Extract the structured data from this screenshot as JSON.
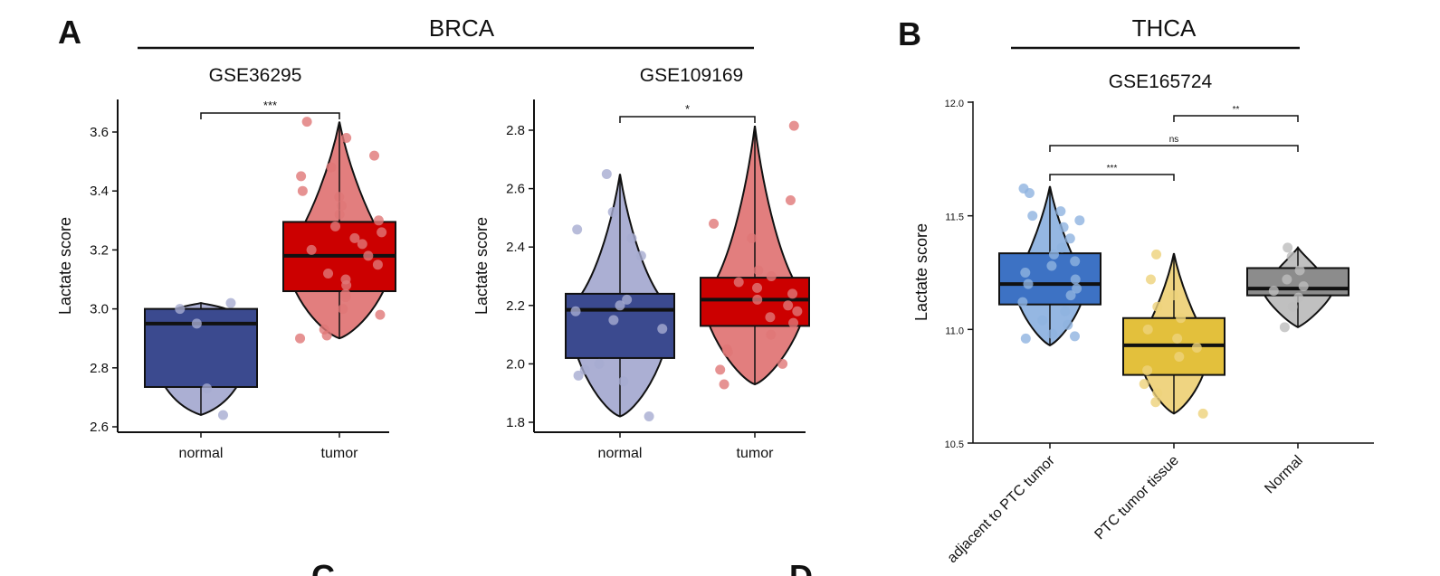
{
  "panels": {
    "a": {
      "letter": "A",
      "title": "BRCA"
    },
    "b": {
      "letter": "B",
      "title": "THCA"
    },
    "c": {
      "letter": "C"
    },
    "d": {
      "letter": "D"
    }
  },
  "chart_data": [
    {
      "type": "violin-box",
      "title": "GSE36295",
      "ylabel": "Lactate score",
      "ylim": [
        2.6,
        3.7
      ],
      "yticks": [
        2.6,
        2.8,
        3.0,
        3.2,
        3.4,
        3.6
      ],
      "categories": [
        "normal",
        "tumor"
      ],
      "groups": [
        {
          "name": "normal",
          "color": "#3b4a8f",
          "violin_color": "#a6abd1",
          "min": 2.64,
          "q1": 2.735,
          "median": 2.95,
          "q3": 3.0,
          "max": 3.02,
          "points": [
            2.64,
            2.73,
            2.95,
            3.0,
            3.02
          ]
        },
        {
          "name": "tumor",
          "color": "#cc0000",
          "violin_color": "#e07777",
          "min": 2.9,
          "q1": 3.06,
          "median": 3.18,
          "q3": 3.295,
          "max": 3.635,
          "points": [
            2.9,
            2.91,
            2.93,
            2.98,
            3.0,
            3.04,
            3.05,
            3.08,
            3.1,
            3.12,
            3.15,
            3.18,
            3.2,
            3.22,
            3.24,
            3.26,
            3.28,
            3.3,
            3.32,
            3.35,
            3.38,
            3.4,
            3.45,
            3.48,
            3.52,
            3.58,
            3.635
          ]
        }
      ],
      "comparisons": [
        {
          "from": "normal",
          "to": "tumor",
          "label": "***"
        }
      ]
    },
    {
      "type": "violin-box",
      "title": "GSE109169",
      "ylabel": "Lactate score",
      "ylim": [
        1.8,
        2.9
      ],
      "yticks": [
        1.8,
        2.0,
        2.2,
        2.4,
        2.6,
        2.8
      ],
      "categories": [
        "normal",
        "tumor"
      ],
      "groups": [
        {
          "name": "normal",
          "color": "#3b4a8f",
          "violin_color": "#a6abd1",
          "min": 1.82,
          "q1": 2.02,
          "median": 2.185,
          "q3": 2.24,
          "max": 2.65,
          "points": [
            1.82,
            1.94,
            1.96,
            1.98,
            2.0,
            2.12,
            2.15,
            2.18,
            2.2,
            2.22,
            2.37,
            2.43,
            2.46,
            2.52,
            2.65
          ]
        },
        {
          "name": "tumor",
          "color": "#cc0000",
          "violin_color": "#e07777",
          "min": 1.93,
          "q1": 2.13,
          "median": 2.22,
          "q3": 2.295,
          "max": 2.815,
          "points": [
            1.93,
            1.98,
            2.0,
            2.04,
            2.05,
            2.1,
            2.14,
            2.16,
            2.18,
            2.2,
            2.22,
            2.24,
            2.26,
            2.28,
            2.3,
            2.32,
            2.43,
            2.48,
            2.56,
            2.815
          ]
        }
      ],
      "comparisons": [
        {
          "from": "normal",
          "to": "tumor",
          "label": "*"
        }
      ]
    },
    {
      "type": "violin-box",
      "title": "GSE165724",
      "ylabel": "Lactate score",
      "ylim": [
        10.5,
        12.0
      ],
      "yticks": [
        10.5,
        11.0,
        11.5,
        12.0
      ],
      "categories": [
        "adjacent to PTC tumor",
        "PTC tumor tissue",
        "Normal"
      ],
      "groups": [
        {
          "name": "adjacent to PTC tumor",
          "color": "#3d72c4",
          "violin_color": "#8fb3e0",
          "min": 10.93,
          "q1": 11.11,
          "median": 11.2,
          "q3": 11.335,
          "max": 11.63,
          "points": [
            10.96,
            10.97,
            10.98,
            11.02,
            11.04,
            11.08,
            11.12,
            11.15,
            11.18,
            11.2,
            11.22,
            11.25,
            11.28,
            11.3,
            11.33,
            11.36,
            11.4,
            11.45,
            11.48,
            11.5,
            11.52,
            11.6,
            11.62
          ]
        },
        {
          "name": "PTC tumor tissue",
          "color": "#e3c03c",
          "violin_color": "#eed27a",
          "min": 10.63,
          "q1": 10.8,
          "median": 10.93,
          "q3": 11.05,
          "max": 11.335,
          "points": [
            10.63,
            10.68,
            10.72,
            10.76,
            10.82,
            10.88,
            10.92,
            10.96,
            11.0,
            11.05,
            11.1,
            11.15,
            11.22,
            11.33
          ]
        },
        {
          "name": "Normal",
          "color": "#8c8c8c",
          "violin_color": "#bdbdbd",
          "min": 11.01,
          "q1": 11.15,
          "median": 11.18,
          "q3": 11.27,
          "max": 11.36,
          "points": [
            11.01,
            11.1,
            11.14,
            11.17,
            11.19,
            11.22,
            11.26,
            11.32,
            11.36
          ]
        }
      ],
      "comparisons": [
        {
          "from": "adjacent to PTC tumor",
          "to": "PTC tumor tissue",
          "label": "***"
        },
        {
          "from": "adjacent to PTC tumor",
          "to": "Normal",
          "label": "ns"
        },
        {
          "from": "PTC tumor tissue",
          "to": "Normal",
          "label": "**"
        }
      ]
    }
  ]
}
